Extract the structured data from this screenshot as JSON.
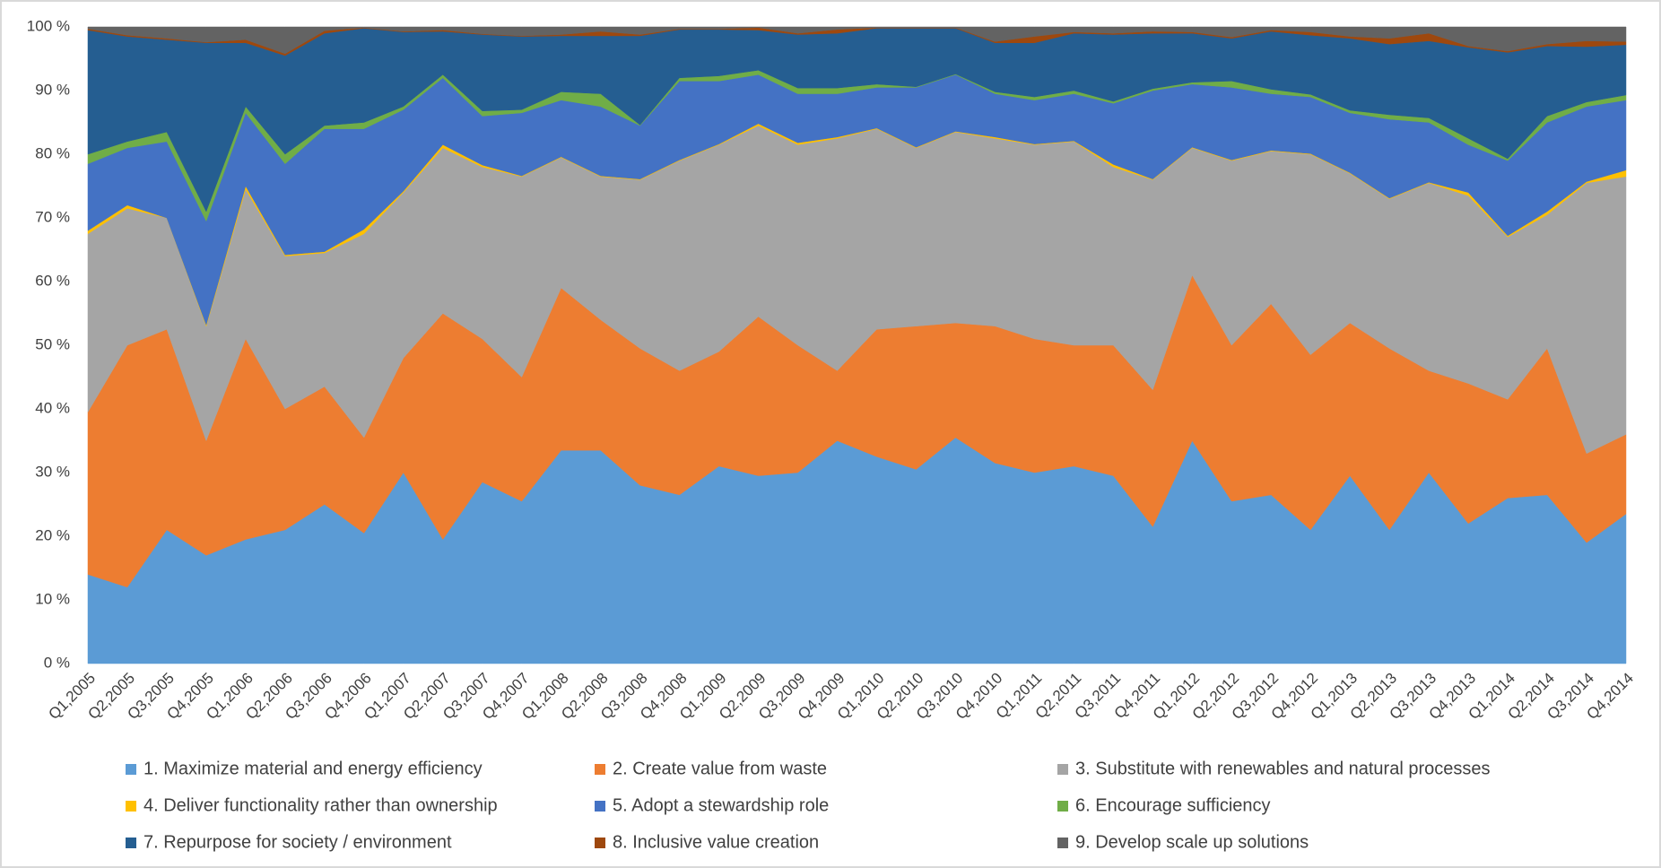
{
  "chart_data": {
    "type": "stacked_area_100",
    "categories": [
      "Q1,2005",
      "Q2,2005",
      "Q3,2005",
      "Q4,2005",
      "Q1,2006",
      "Q2,2006",
      "Q3,2006",
      "Q4,2006",
      "Q1,2007",
      "Q2,2007",
      "Q3,2007",
      "Q4,2007",
      "Q1,2008",
      "Q2,2008",
      "Q3,2008",
      "Q4,2008",
      "Q1,2009",
      "Q2,2009",
      "Q3,2009",
      "Q4,2009",
      "Q1,2010",
      "Q2,2010",
      "Q3,2010",
      "Q4,2010",
      "Q1,2011",
      "Q2,2011",
      "Q3,2011",
      "Q4,2011",
      "Q1,2012",
      "Q2,2012",
      "Q3,2012",
      "Q4,2012",
      "Q1,2013",
      "Q2,2013",
      "Q3,2013",
      "Q4,2013",
      "Q1,2014",
      "Q2,2014",
      "Q3,2014",
      "Q4,2014"
    ],
    "series": [
      {
        "name": "1. Maximize material and energy efficiency",
        "color": "#5b9bd5",
        "values": [
          14,
          12,
          21,
          17,
          19.5,
          21,
          25,
          20.5,
          30,
          19.5,
          28.5,
          25.5,
          33.5,
          33.5,
          28,
          26.5,
          31,
          29.5,
          30,
          35,
          32.5,
          30.5,
          35.5,
          31.5,
          30,
          31,
          29.5,
          21.5,
          35,
          25.5,
          26.5,
          21,
          29.5,
          21,
          30,
          22,
          26,
          26.5,
          19,
          23.5
        ]
      },
      {
        "name": "2. Create value from waste",
        "color": "#ed7d31",
        "values": [
          25.5,
          38,
          31.5,
          18,
          31.5,
          19,
          18.5,
          15,
          18,
          35.5,
          22.5,
          19.5,
          25.5,
          20.5,
          21.5,
          19.5,
          18,
          25,
          20,
          11,
          20,
          22.5,
          18,
          21.5,
          21,
          19,
          20.5,
          21.5,
          26,
          24.5,
          30,
          27.5,
          24,
          28.5,
          16,
          22,
          15.5,
          23,
          14,
          12.5
        ]
      },
      {
        "name": "3. Substitute with renewables and natural processes",
        "color": "#a5a5a5",
        "values": [
          28,
          21.5,
          17.5,
          18,
          23.5,
          24,
          21,
          32,
          26,
          26,
          27,
          31.5,
          20.5,
          22.5,
          26.5,
          33,
          32.5,
          30,
          31.5,
          36.5,
          31.5,
          28,
          30,
          29.5,
          30.5,
          32,
          28,
          33,
          20,
          29,
          24,
          31.5,
          23.5,
          23.5,
          29.5,
          29.5,
          25.5,
          21,
          42.5,
          40.5
        ]
      },
      {
        "name": "4. Deliver functionality rather than ownership",
        "color": "#ffc000",
        "values": [
          0.5,
          0.5,
          0,
          0.2,
          0.5,
          0.2,
          0.2,
          0.7,
          0.2,
          0.5,
          0.3,
          0.1,
          0.1,
          0.1,
          0.1,
          0.1,
          0.1,
          0.3,
          0.3,
          0.2,
          0.1,
          0.1,
          0.1,
          0.2,
          0.1,
          0.1,
          0.4,
          0.1,
          0.1,
          0.1,
          0.1,
          0.1,
          0.1,
          0.1,
          0.1,
          0.5,
          0.2,
          0.5,
          0.2,
          1.0
        ]
      },
      {
        "name": "5. Adopt a stewardship role",
        "color": "#4472c4",
        "values": [
          10.5,
          9,
          12,
          16.3,
          11.5,
          14.3,
          19.3,
          15.8,
          12.8,
          10.5,
          7.7,
          9.9,
          8.9,
          10.9,
          8.4,
          12.4,
          9.9,
          7.7,
          7.7,
          6.8,
          6.4,
          9.4,
          8.9,
          6.8,
          6.9,
          7.4,
          9.6,
          13.9,
          9.9,
          11.4,
          8.9,
          8.9,
          9.4,
          12.4,
          9.4,
          7.5,
          11.8,
          14,
          11.8,
          11
        ]
      },
      {
        "name": "6. Encourage sufficiency",
        "color": "#70ad47",
        "values": [
          1.5,
          1,
          1.5,
          1.5,
          1,
          1.5,
          0.5,
          1,
          0.5,
          0.5,
          0.8,
          0.5,
          1.3,
          2,
          0.1,
          0.5,
          0.8,
          0.7,
          0.9,
          0.9,
          0.5,
          0.1,
          0.1,
          0.3,
          0.5,
          0.5,
          0.3,
          0.3,
          0.3,
          1,
          0.7,
          0.4,
          0.4,
          0.7,
          0.7,
          1,
          0.3,
          1,
          0.7,
          0.8
        ]
      },
      {
        "name": "7. Repurpose for society / environment",
        "color": "#255e91",
        "values": [
          19.5,
          16.5,
          14.5,
          26.5,
          10,
          15.5,
          14.5,
          14.8,
          11.7,
          6.8,
          12,
          11.5,
          8.8,
          9.1,
          14,
          7.6,
          7.3,
          6.3,
          8.4,
          8.6,
          8.8,
          9.2,
          7.2,
          7.7,
          8.5,
          9,
          10.5,
          8.7,
          7.7,
          6.7,
          9.1,
          9.3,
          11.3,
          11.1,
          12.1,
          14.3,
          16.7,
          11,
          8.7,
          7.9
        ]
      },
      {
        "name": "8. Inclusive value creation",
        "color": "#9e480e",
        "values": [
          0.2,
          0.2,
          0.2,
          0.1,
          0.5,
          0.3,
          0.4,
          0.1,
          0.1,
          0.2,
          0.1,
          0.1,
          0.2,
          0.7,
          0.2,
          0.1,
          0.1,
          0.4,
          0.2,
          0.6,
          0.1,
          0.1,
          0.1,
          0.2,
          1,
          0.2,
          0.2,
          0.3,
          0.2,
          0.2,
          0.2,
          0.5,
          0.3,
          0.9,
          1.2,
          0.2,
          0.2,
          0.3,
          0.9,
          0.5
        ]
      },
      {
        "name": "9. Develop scale up solutions",
        "color": "#636363",
        "values": [
          0.3,
          1.3,
          1.8,
          2.4,
          2,
          4.2,
          0.6,
          0.1,
          0.7,
          0.5,
          1.1,
          1.4,
          1.2,
          0.7,
          1.2,
          0.3,
          0.3,
          0.1,
          1,
          0.4,
          0.1,
          0.1,
          0.1,
          2.3,
          1.5,
          0.8,
          1,
          0.7,
          0.8,
          1.6,
          0.5,
          0.8,
          1.5,
          1.8,
          1,
          3,
          3.8,
          2.7,
          2.2,
          2.3
        ]
      }
    ],
    "ylim": [
      0,
      100
    ],
    "yticks": [
      {
        "value": 0,
        "label": "0 %"
      },
      {
        "value": 10,
        "label": "10 %"
      },
      {
        "value": 20,
        "label": "20 %"
      },
      {
        "value": 30,
        "label": "30 %"
      },
      {
        "value": 40,
        "label": "40 %"
      },
      {
        "value": 50,
        "label": "50 %"
      },
      {
        "value": 60,
        "label": "60 %"
      },
      {
        "value": 70,
        "label": "70 %"
      },
      {
        "value": 80,
        "label": "80 %"
      },
      {
        "value": 90,
        "label": "90 %"
      },
      {
        "value": 100,
        "label": "100 %"
      }
    ],
    "grid": false,
    "legend": "bottom"
  }
}
